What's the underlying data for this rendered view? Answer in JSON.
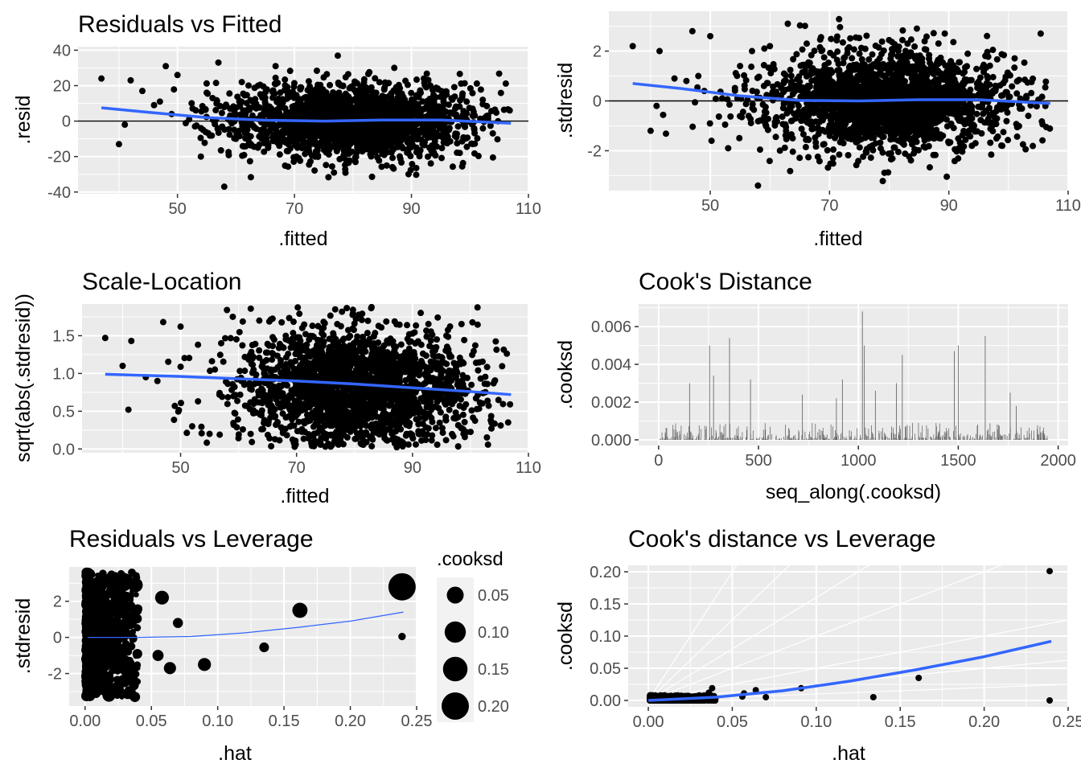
{
  "chart_data": [
    {
      "id": "p1",
      "type": "scatter",
      "title": "Residuals vs Fitted",
      "xlabel": ".fitted",
      "ylabel": ".resid",
      "xlim": [
        33,
        110
      ],
      "ylim": [
        -41,
        42
      ],
      "xticks": [
        50,
        70,
        90,
        110
      ],
      "yticks": [
        -40,
        -20,
        0,
        20,
        40
      ],
      "xtick_labels": [
        "50",
        "70",
        "90",
        "110"
      ],
      "ytick_labels": [
        "-40",
        "-20",
        "0",
        "20",
        "40"
      ],
      "hline": 0,
      "smooth": {
        "x": [
          37,
          45,
          55,
          65,
          75,
          85,
          95,
          107
        ],
        "y": [
          7.5,
          5,
          2,
          0.5,
          0,
          0.6,
          0.6,
          -1.2
        ]
      },
      "cloud": {
        "cx": 80,
        "cy": 0,
        "sx": 10,
        "sy": 10,
        "xmin": 38,
        "xmax": 107,
        "ymin": -38,
        "ymax": 38,
        "n": 2100
      },
      "points": [
        {
          "x": 37,
          "y": 24
        },
        {
          "x": 40,
          "y": -13
        },
        {
          "x": 41,
          "y": -2
        },
        {
          "x": 42,
          "y": 23
        },
        {
          "x": 44,
          "y": 17
        },
        {
          "x": 46,
          "y": 9
        },
        {
          "x": 47,
          "y": 11
        },
        {
          "x": 48,
          "y": 31
        },
        {
          "x": 49,
          "y": 4
        },
        {
          "x": 50,
          "y": 26
        },
        {
          "x": 52,
          "y": 1
        },
        {
          "x": 53,
          "y": -3
        },
        {
          "x": 54,
          "y": -20
        },
        {
          "x": 55,
          "y": 16
        },
        {
          "x": 56,
          "y": 13
        },
        {
          "x": 57,
          "y": 33
        },
        {
          "x": 58,
          "y": -37
        },
        {
          "x": 59,
          "y": 7
        },
        {
          "x": 60,
          "y": -10
        },
        {
          "x": 61,
          "y": 22
        }
      ]
    },
    {
      "id": "p2",
      "type": "scatter",
      "title": "",
      "xlabel": ".fitted",
      "ylabel": ".stdresid",
      "xlim": [
        33,
        110
      ],
      "ylim": [
        -3.6,
        3.6
      ],
      "xticks": [
        50,
        70,
        90,
        110
      ],
      "yticks": [
        -2,
        0,
        2
      ],
      "xtick_labels": [
        "50",
        "70",
        "90",
        "110"
      ],
      "ytick_labels": [
        "-2",
        "0",
        "2"
      ],
      "hline": 0,
      "smooth": {
        "x": [
          37,
          45,
          55,
          65,
          75,
          85,
          95,
          107
        ],
        "y": [
          0.7,
          0.5,
          0.2,
          0.02,
          0,
          0.05,
          0.05,
          -0.1
        ]
      },
      "cloud": {
        "cx": 80,
        "cy": 0,
        "sx": 10,
        "sy": 0.95,
        "xmin": 38,
        "xmax": 107,
        "ymin": -3.3,
        "ymax": 3.5,
        "n": 2100
      },
      "points": [
        {
          "x": 37,
          "y": 2.2
        },
        {
          "x": 40,
          "y": -1.2
        },
        {
          "x": 41,
          "y": -0.2
        },
        {
          "x": 41.5,
          "y": 2.0
        },
        {
          "x": 44,
          "y": 0.9
        },
        {
          "x": 46,
          "y": 0.8
        },
        {
          "x": 47,
          "y": 2.8
        },
        {
          "x": 48,
          "y": 1.0
        },
        {
          "x": 49,
          "y": 0.4
        },
        {
          "x": 50,
          "y": 2.6
        },
        {
          "x": 52,
          "y": 0.1
        },
        {
          "x": 53,
          "y": -1.9
        },
        {
          "x": 55,
          "y": 1.4
        },
        {
          "x": 57,
          "y": 2.0
        },
        {
          "x": 58,
          "y": -3.4
        },
        {
          "x": 59,
          "y": 0.6
        },
        {
          "x": 60,
          "y": 2.2
        },
        {
          "x": 61,
          "y": -0.7
        },
        {
          "x": 63,
          "y": 3.1
        }
      ]
    },
    {
      "id": "p3",
      "type": "scatter",
      "title": "Scale-Location",
      "xlabel": ".fitted",
      "ylabel": "sqrt(abs(.stdresid))",
      "xlim": [
        33,
        110
      ],
      "ylim": [
        -0.05,
        1.92
      ],
      "xticks": [
        50,
        70,
        90,
        110
      ],
      "yticks": [
        0.0,
        0.5,
        1.0,
        1.5
      ],
      "xtick_labels": [
        "50",
        "70",
        "90",
        "110"
      ],
      "ytick_labels": [
        "0.0",
        "0.5",
        "1.0",
        "1.5"
      ],
      "hline": null,
      "smooth": {
        "x": [
          37,
          50,
          60,
          70,
          80,
          90,
          100,
          107
        ],
        "y": [
          0.99,
          0.96,
          0.93,
          0.9,
          0.86,
          0.81,
          0.76,
          0.72
        ]
      },
      "cloud": {
        "cx": 80,
        "cy": 0.8,
        "sx": 10,
        "sy": 0.4,
        "xmin": 38,
        "xmax": 107,
        "ymin": 0.02,
        "ymax": 1.88,
        "n": 2100
      },
      "points": [
        {
          "x": 37,
          "y": 1.47
        },
        {
          "x": 40,
          "y": 1.1
        },
        {
          "x": 41,
          "y": 0.52
        },
        {
          "x": 41.5,
          "y": 1.43
        },
        {
          "x": 44,
          "y": 0.95
        },
        {
          "x": 46,
          "y": 0.9
        },
        {
          "x": 47,
          "y": 1.68
        },
        {
          "x": 49,
          "y": 0.57
        },
        {
          "x": 50,
          "y": 1.62
        },
        {
          "x": 52,
          "y": 0.3
        },
        {
          "x": 53,
          "y": 1.38
        },
        {
          "x": 55,
          "y": 0.2
        },
        {
          "x": 57,
          "y": 1.4
        },
        {
          "x": 58,
          "y": 1.84
        },
        {
          "x": 59,
          "y": 1.75
        },
        {
          "x": 61,
          "y": 0.85
        }
      ]
    },
    {
      "id": "p4",
      "type": "bar",
      "title": "Cook's Distance",
      "xlabel": "seq_along(.cooksd)",
      "ylabel": ".cooksd",
      "xlim": [
        -100,
        2050
      ],
      "ylim": [
        -0.0003,
        0.0072
      ],
      "xticks": [
        0,
        500,
        1000,
        1500,
        2000
      ],
      "yticks": [
        0.0,
        0.002,
        0.004,
        0.006
      ],
      "xtick_labels": [
        "0",
        "500",
        "1000",
        "1500",
        "2000"
      ],
      "ytick_labels": [
        "0.000",
        "0.002",
        "0.004",
        "0.006"
      ],
      "n": 1950,
      "spikes": [
        {
          "x": 155,
          "y": 0.003
        },
        {
          "x": 255,
          "y": 0.005
        },
        {
          "x": 275,
          "y": 0.0034
        },
        {
          "x": 355,
          "y": 0.0054
        },
        {
          "x": 460,
          "y": 0.0032
        },
        {
          "x": 720,
          "y": 0.0024
        },
        {
          "x": 890,
          "y": 0.0022
        },
        {
          "x": 920,
          "y": 0.0032
        },
        {
          "x": 1020,
          "y": 0.0068
        },
        {
          "x": 1030,
          "y": 0.005
        },
        {
          "x": 1220,
          "y": 0.0045
        },
        {
          "x": 1480,
          "y": 0.0047
        },
        {
          "x": 1500,
          "y": 0.005
        },
        {
          "x": 1635,
          "y": 0.0055
        },
        {
          "x": 1760,
          "y": 0.0025
        },
        {
          "x": 1790,
          "y": 0.0018
        },
        {
          "x": 1190,
          "y": 0.003
        },
        {
          "x": 1085,
          "y": 0.0026
        }
      ]
    },
    {
      "id": "p5",
      "type": "scatter",
      "title": "Residuals vs Leverage",
      "xlabel": ".hat",
      "ylabel": ".stdresid",
      "xlim": [
        -0.012,
        0.25
      ],
      "ylim": [
        -3.8,
        3.9
      ],
      "xticks": [
        0.0,
        0.05,
        0.1,
        0.15,
        0.2,
        0.25
      ],
      "yticks": [
        -2,
        0,
        2
      ],
      "xtick_labels": [
        "0.00",
        "0.05",
        "0.10",
        "0.15",
        "0.20",
        "0.25"
      ],
      "ytick_labels": [
        "-2",
        "0",
        "2"
      ],
      "smooth": {
        "x": [
          0.002,
          0.04,
          0.08,
          0.12,
          0.16,
          0.2,
          0.24
        ],
        "y": [
          0,
          0.0,
          0.05,
          0.25,
          0.55,
          0.9,
          1.4
        ]
      },
      "cloud": {
        "xmin": 0.001,
        "xmax": 0.04,
        "ymin": -3.3,
        "ymax": 3.6,
        "n": 900
      },
      "points": [
        {
          "x": 0.239,
          "y": 2.8,
          "cooksd": 0.2
        },
        {
          "x": 0.162,
          "y": 1.5,
          "cooksd": 0.035
        },
        {
          "x": 0.135,
          "y": -0.55,
          "cooksd": 0.005
        },
        {
          "x": 0.09,
          "y": -1.5,
          "cooksd": 0.02
        },
        {
          "x": 0.064,
          "y": -1.7,
          "cooksd": 0.015
        },
        {
          "x": 0.058,
          "y": 2.2,
          "cooksd": 0.025
        },
        {
          "x": 0.07,
          "y": 0.8,
          "cooksd": 0.006
        },
        {
          "x": 0.055,
          "y": -1.0,
          "cooksd": 0.01
        },
        {
          "x": 0.038,
          "y": 2.9,
          "cooksd": 0.03
        },
        {
          "x": 0.025,
          "y": 3.05,
          "cooksd": 0.022
        },
        {
          "x": 0.018,
          "y": -3.2,
          "cooksd": 0.02
        },
        {
          "x": 0.024,
          "y": -2.8,
          "cooksd": 0.015
        },
        {
          "x": 0.239,
          "y": 0.05,
          "cooksd": 0.0005
        }
      ]
    },
    {
      "id": "p6",
      "type": "scatter",
      "title": "Cook's distance vs Leverage",
      "xlabel": ".hat",
      "ylabel": ".cooksd",
      "xlim": [
        -0.012,
        0.25
      ],
      "ylim": [
        -0.01,
        0.21
      ],
      "xticks": [
        0.0,
        0.05,
        0.1,
        0.15,
        0.2,
        0.25
      ],
      "yticks": [
        0.0,
        0.05,
        0.1,
        0.15,
        0.2
      ],
      "xtick_labels": [
        "0.00",
        "0.05",
        "0.10",
        "0.15",
        "0.20",
        "0.25"
      ],
      "ytick_labels": [
        "0.00",
        "0.05",
        "0.10",
        "0.15",
        "0.20"
      ],
      "smooth": {
        "x": [
          0.0,
          0.04,
          0.08,
          0.12,
          0.16,
          0.2,
          0.24
        ],
        "y": [
          0.0,
          0.005,
          0.015,
          0.03,
          0.048,
          0.068,
          0.092
        ]
      },
      "refline_slopes": [
        0.1,
        0.25,
        0.5,
        1,
        1.6,
        2.5,
        4
      ],
      "cloud": {
        "xmin": 0.001,
        "xmax": 0.04,
        "ymin": 0.0,
        "ymax": 0.008,
        "n": 700
      },
      "points": [
        {
          "x": 0.239,
          "y": 0.201
        },
        {
          "x": 0.161,
          "y": 0.035
        },
        {
          "x": 0.134,
          "y": 0.005
        },
        {
          "x": 0.091,
          "y": 0.019
        },
        {
          "x": 0.07,
          "y": 0.005
        },
        {
          "x": 0.064,
          "y": 0.016
        },
        {
          "x": 0.057,
          "y": 0.011
        },
        {
          "x": 0.056,
          "y": 0.006
        },
        {
          "x": 0.038,
          "y": 0.019
        },
        {
          "x": 0.036,
          "y": 0.012
        },
        {
          "x": 0.239,
          "y": 0.0
        }
      ]
    }
  ],
  "legend": {
    "title": ".cooksd",
    "entries": [
      {
        "value": 0.05,
        "label": "0.05"
      },
      {
        "value": 0.1,
        "label": "0.10"
      },
      {
        "value": 0.15,
        "label": "0.15"
      },
      {
        "value": 0.2,
        "label": "0.20"
      }
    ]
  },
  "colors": {
    "panel": "#ebebeb",
    "grid": "#ffffff",
    "point": "#000000",
    "smooth": "#3366ff",
    "tick": "#333333",
    "bar": "#595959"
  }
}
